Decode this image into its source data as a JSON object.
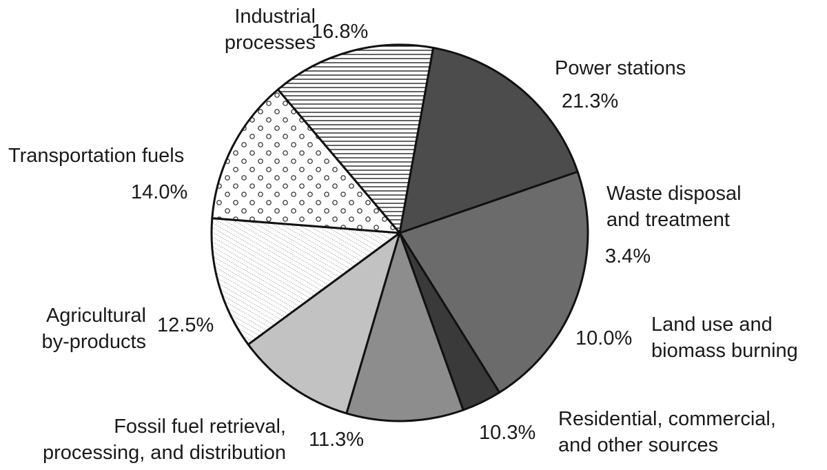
{
  "chart_data": {
    "type": "pie",
    "title": "",
    "start_angle_deg": -19,
    "direction": "clockwise",
    "slices": [
      {
        "name": "Power stations",
        "label_lines": [
          "Power stations"
        ],
        "pct_label": "21.3%",
        "value": 21.3,
        "fill": "dark-gray"
      },
      {
        "name": "Waste disposal and treatment",
        "label_lines": [
          "Waste disposal",
          "and treatment"
        ],
        "pct_label": "3.4%",
        "value": 3.4,
        "fill": "near-black"
      },
      {
        "name": "Land use and biomass burning",
        "label_lines": [
          "Land use and",
          "biomass burning"
        ],
        "pct_label": "10.0%",
        "value": 10.0,
        "fill": "medium-gray"
      },
      {
        "name": "Residential, commercial, and other sources",
        "label_lines": [
          "Residential, commercial,",
          "and other sources"
        ],
        "pct_label": "10.3%",
        "value": 10.3,
        "fill": "light-gray"
      },
      {
        "name": "Fossil fuel retrieval, processing, and distribution",
        "label_lines": [
          "Fossil fuel retrieval,",
          "processing, and distribution"
        ],
        "pct_label": "11.3%",
        "value": 11.3,
        "fill": "fine-diagonal-hatch"
      },
      {
        "name": "Agricultural by-products",
        "label_lines": [
          "Agricultural",
          "by-products"
        ],
        "pct_label": "12.5%",
        "value": 12.5,
        "fill": "circle-dots"
      },
      {
        "name": "Transportation fuels",
        "label_lines": [
          "Transportation fuels"
        ],
        "pct_label": "14.0%",
        "value": 14.0,
        "fill": "horizontal-lines"
      },
      {
        "name": "Industrial processes",
        "label_lines": [
          "Industrial",
          "processes"
        ],
        "pct_label": "16.8%",
        "value": 16.8,
        "fill": "darkest-gray"
      }
    ],
    "colors": {
      "dark-gray": "#6b6b6b",
      "near-black": "#3a3a3a",
      "medium-gray": "#8d8d8d",
      "light-gray": "#c2c2c2",
      "darkest-gray": "#4c4c4c",
      "outline": "#111111"
    }
  }
}
